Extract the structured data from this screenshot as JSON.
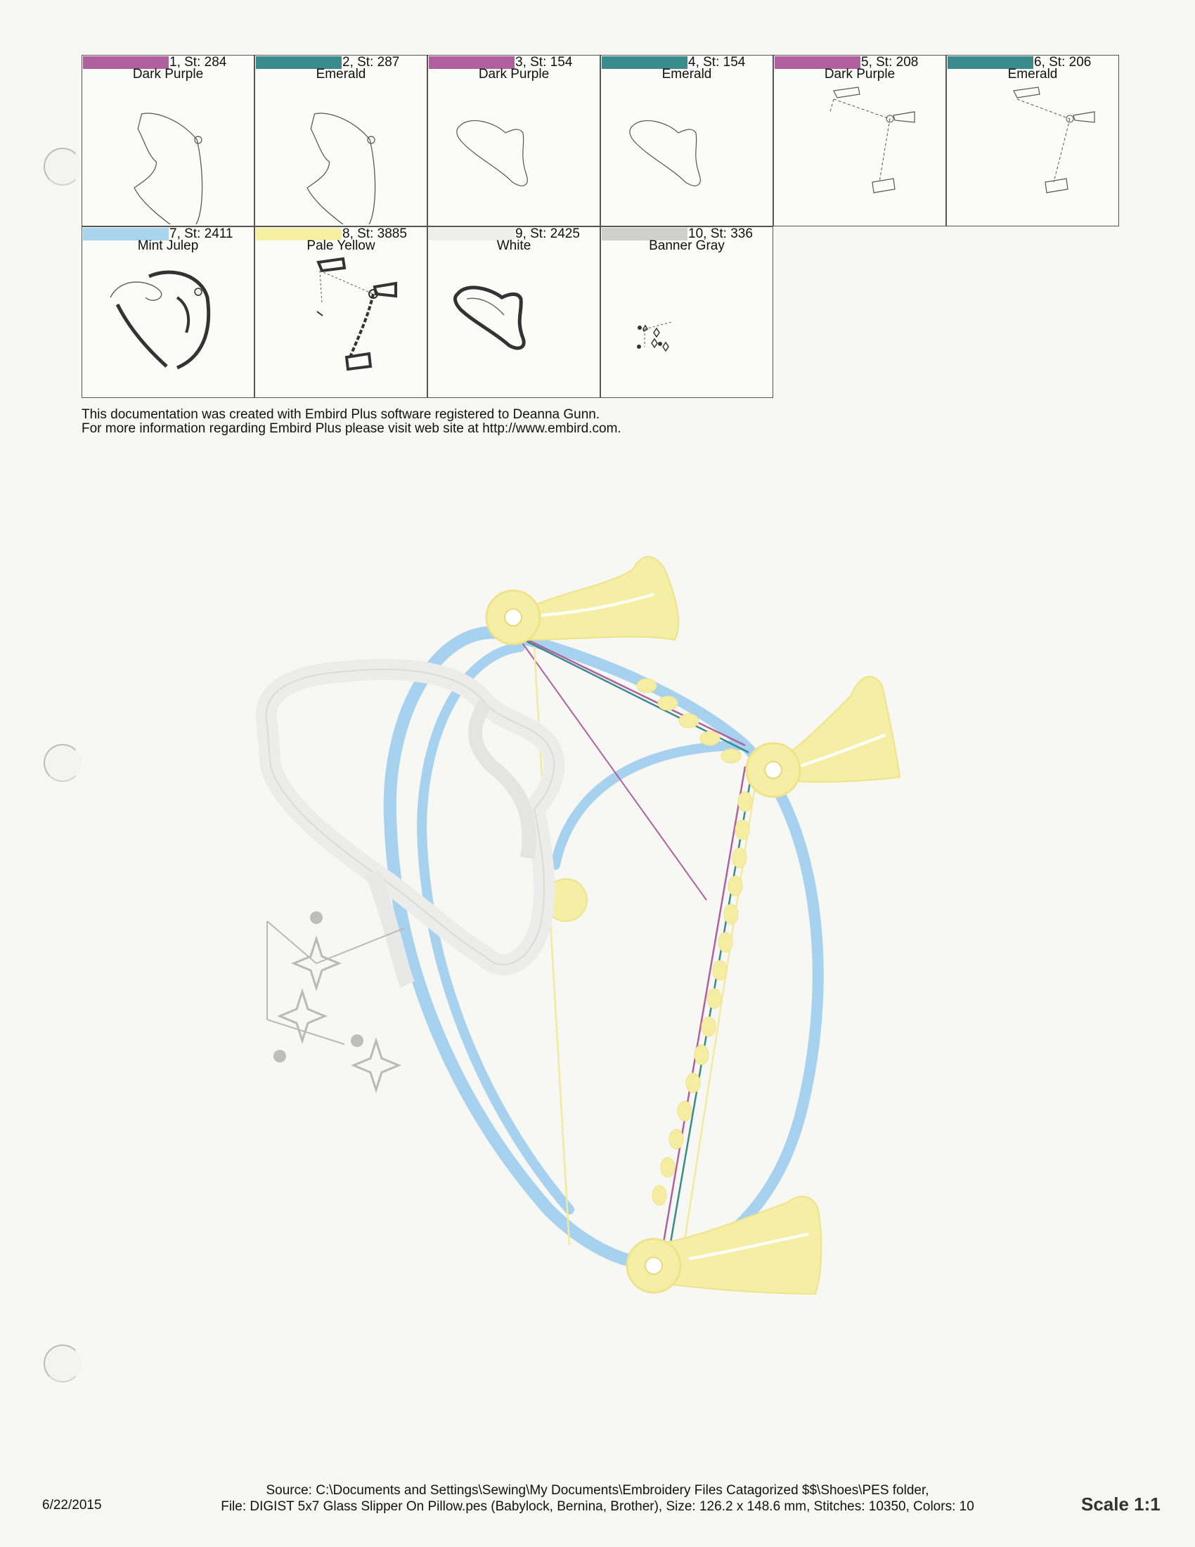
{
  "colors": [
    {
      "index": "1, St: 284",
      "name": "Dark Purple",
      "hex": "#b0609f"
    },
    {
      "index": "2, St: 287",
      "name": "Emerald",
      "hex": "#3a8a8c"
    },
    {
      "index": "3, St: 154",
      "name": "Dark Purple",
      "hex": "#b0609f"
    },
    {
      "index": "4, St: 154",
      "name": "Emerald",
      "hex": "#3a8a8c"
    },
    {
      "index": "5, St: 208",
      "name": "Dark Purple",
      "hex": "#b0609f"
    },
    {
      "index": "6, St: 206",
      "name": "Emerald",
      "hex": "#3a8a8c"
    },
    {
      "index": "7, St: 2411",
      "name": "Mint Julep",
      "hex": "#a8d4ee"
    },
    {
      "index": "8, St: 3885",
      "name": "Pale Yellow",
      "hex": "#f6f0a4"
    },
    {
      "index": "9, St: 2425",
      "name": "White",
      "hex": "#eeeeec"
    },
    {
      "index": "10, St: 336",
      "name": "Banner Gray",
      "hex": "#cfcfcd"
    }
  ],
  "credit": {
    "line1": "This documentation was created with Embird Plus software registered to Deanna Gunn.",
    "line2": "For more information regarding Embird Plus please visit web site at http://www.embird.com."
  },
  "footer": {
    "date": "6/22/2015",
    "source": "Source: C:\\Documents and Settings\\Sewing\\My Documents\\Embroidery Files Catagorized $$\\Shoes\\PES folder,",
    "file": "File: DIGIST 5x7 Glass Slipper On Pillow.pes (Babylock, Bernina, Brother), Size: 126.2 x 148.6 mm, Stitches: 10350, Colors: 10",
    "scale": "Scale 1:1"
  }
}
